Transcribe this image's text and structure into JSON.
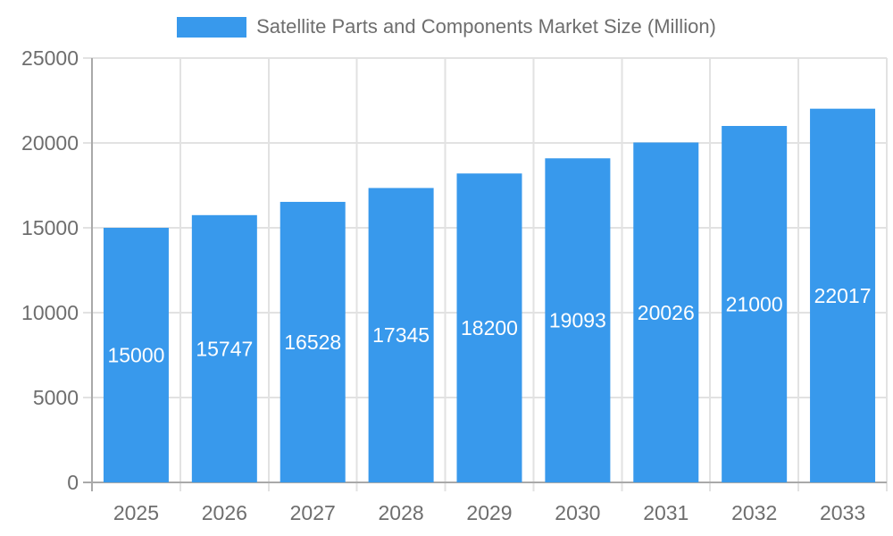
{
  "chart_data": {
    "type": "bar",
    "title": "Satellite Parts and Components Market Size (Million)",
    "categories": [
      "2025",
      "2026",
      "2027",
      "2028",
      "2029",
      "2030",
      "2031",
      "2032",
      "2033"
    ],
    "series": [
      {
        "name": "Satellite Parts and Components Market Size (Million)",
        "values": [
          15000,
          15747,
          16528,
          17345,
          18200,
          19093,
          20026,
          21000,
          22017
        ]
      }
    ],
    "xlabel": "",
    "ylabel": "",
    "ylim": [
      0,
      25000
    ],
    "yticks": [
      0,
      5000,
      10000,
      15000,
      20000,
      25000
    ],
    "grid": true,
    "legend_position": "top",
    "value_labels": "white-centered-inside-bars",
    "colors": {
      "bar": "#3899EC",
      "value_label_text": "#FFFFFF",
      "axis_text": "#6E6E6E",
      "grid_line": "#E2E2E2",
      "axis_line": "#A9A9A9",
      "background": "#FFFFFF"
    }
  }
}
